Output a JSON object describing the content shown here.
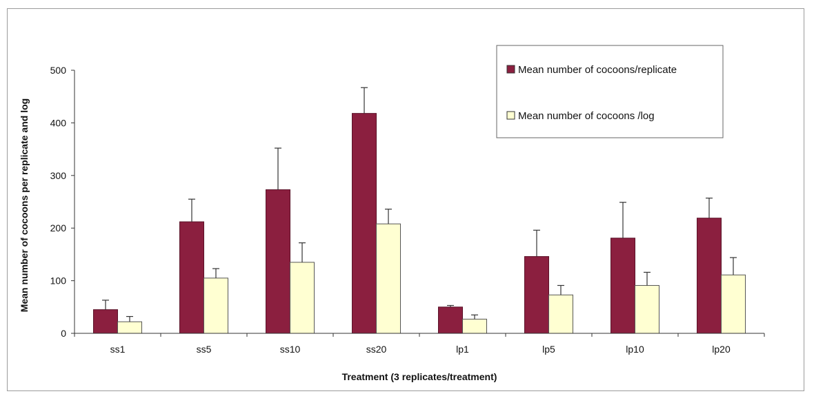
{
  "chart_data": {
    "type": "bar",
    "title": "",
    "xlabel": "Treatment (3 replicates/treatment)",
    "ylabel": "Mean number of cocoons per replicate and log",
    "categories": [
      "ss1",
      "ss5",
      "ss10",
      "ss20",
      "lp1",
      "lp5",
      "lp10",
      "lp20"
    ],
    "ylim": [
      0,
      500
    ],
    "yticks": [
      0,
      100,
      200,
      300,
      400,
      500
    ],
    "grid": false,
    "legend_position": "top-right",
    "series": [
      {
        "name": "Mean number of cocoons/replicate",
        "color": "#8b1f3f",
        "values": [
          45,
          212,
          273,
          418,
          50,
          146,
          181,
          219
        ],
        "errors": [
          18,
          43,
          79,
          49,
          3,
          50,
          68,
          38
        ]
      },
      {
        "name": "Mean number of cocoons /log",
        "color": "#ffffd2",
        "values": [
          22,
          105,
          135,
          208,
          27,
          73,
          91,
          111
        ],
        "errors": [
          10,
          18,
          37,
          28,
          8,
          18,
          25,
          33
        ]
      }
    ]
  }
}
